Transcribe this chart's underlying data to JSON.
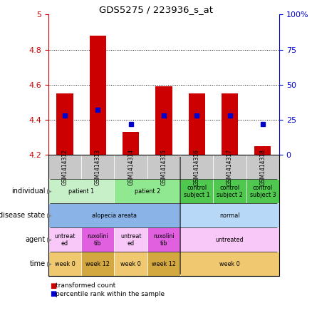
{
  "title": "GDS5275 / 223936_s_at",
  "samples": [
    "GSM1414312",
    "GSM1414313",
    "GSM1414314",
    "GSM1414315",
    "GSM1414316",
    "GSM1414317",
    "GSM1414318"
  ],
  "transformed_count": [
    4.55,
    4.88,
    4.33,
    4.59,
    4.55,
    4.55,
    4.25
  ],
  "percentile_values": [
    28,
    32,
    22,
    28,
    28,
    28,
    22
  ],
  "ylim_left": [
    4.2,
    5.0
  ],
  "ylim_right": [
    0,
    100
  ],
  "yticks_left": [
    4.2,
    4.4,
    4.6,
    4.8,
    5.0
  ],
  "ytick_labels_left": [
    "4.2",
    "4.4",
    "4.6",
    "4.8",
    "5"
  ],
  "yticks_right": [
    0,
    25,
    50,
    75,
    100
  ],
  "ytick_labels_right": [
    "0",
    "25",
    "50",
    "75",
    "100%"
  ],
  "individual_spans": [
    [
      0,
      2,
      "patient 1",
      "#c8f0c8"
    ],
    [
      2,
      4,
      "patient 2",
      "#90e890"
    ],
    [
      4,
      5,
      "control\nsubject 1",
      "#50c850"
    ],
    [
      5,
      6,
      "control\nsubject 2",
      "#50c850"
    ],
    [
      6,
      7,
      "control\nsubject 3",
      "#50c850"
    ]
  ],
  "disease_state_spans": [
    [
      0,
      4,
      "alopecia areata",
      "#8ab4e8"
    ],
    [
      4,
      7,
      "normal",
      "#b8d8f8"
    ]
  ],
  "agent_spans": [
    [
      0,
      1,
      "untreat\ned",
      "#f8c8f8"
    ],
    [
      1,
      2,
      "ruxolini\ntib",
      "#e060e0"
    ],
    [
      2,
      3,
      "untreat\ned",
      "#f8c8f8"
    ],
    [
      3,
      4,
      "ruxolini\ntib",
      "#e060e0"
    ],
    [
      4,
      7,
      "untreated",
      "#f8c8f8"
    ]
  ],
  "time_spans": [
    [
      0,
      1,
      "week 0",
      "#f0c870"
    ],
    [
      1,
      2,
      "week 12",
      "#d4a840"
    ],
    [
      2,
      3,
      "week 0",
      "#f0c870"
    ],
    [
      3,
      4,
      "week 12",
      "#d4a840"
    ],
    [
      4,
      7,
      "week 0",
      "#f0c870"
    ]
  ],
  "bar_color": "#cc0000",
  "dot_color": "#0000cc",
  "sample_bg": "#c8c8c8",
  "left_axis_color": "#cc0000",
  "right_axis_color": "#0000cc",
  "bar_width": 0.5
}
